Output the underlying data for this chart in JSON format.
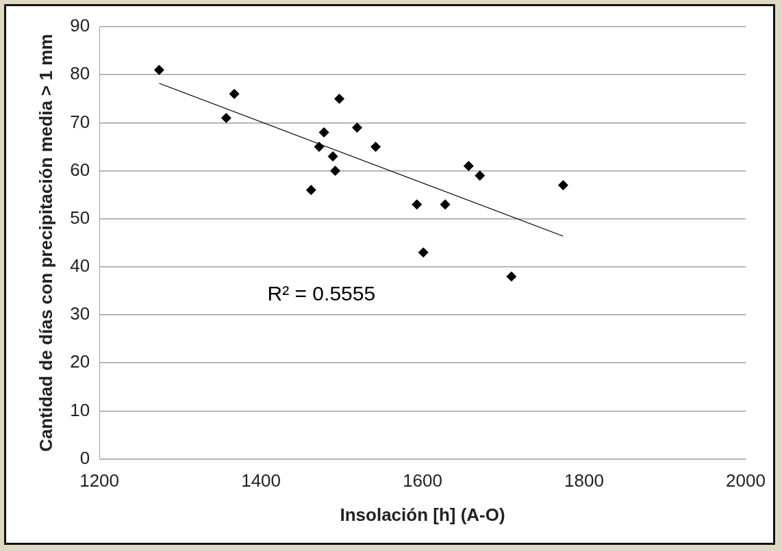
{
  "chart_data": {
    "type": "scatter",
    "xlabel": "Insolación [h] (A-O)",
    "ylabel": "Cantidad de días con precipitación media > 1 mm",
    "xlim": [
      1200,
      2000
    ],
    "xticks": [
      1200,
      1400,
      1600,
      1800,
      2000
    ],
    "ylim": [
      0,
      90
    ],
    "yticks": [
      0,
      10,
      20,
      30,
      40,
      50,
      60,
      70,
      80,
      90
    ],
    "grid": "y",
    "legend": false,
    "series": [
      {
        "color": "#000000",
        "marker": "diamond",
        "x": [
          1274,
          1357,
          1367,
          1462,
          1472,
          1478,
          1489,
          1492,
          1497,
          1519,
          1542,
          1593,
          1601,
          1628,
          1657,
          1671,
          1710,
          1774
        ],
        "values": [
          81,
          71,
          76,
          56,
          65,
          68,
          63,
          60,
          75,
          69,
          65,
          53,
          43,
          53,
          61,
          59,
          38,
          57
        ]
      },
      {
        "type": "line",
        "color": "#000000",
        "marker": "none",
        "x": [
          1274,
          1774
        ],
        "values": [
          78.2,
          46.4
        ]
      }
    ],
    "annotations": [
      "R² = 0.5555"
    ]
  }
}
